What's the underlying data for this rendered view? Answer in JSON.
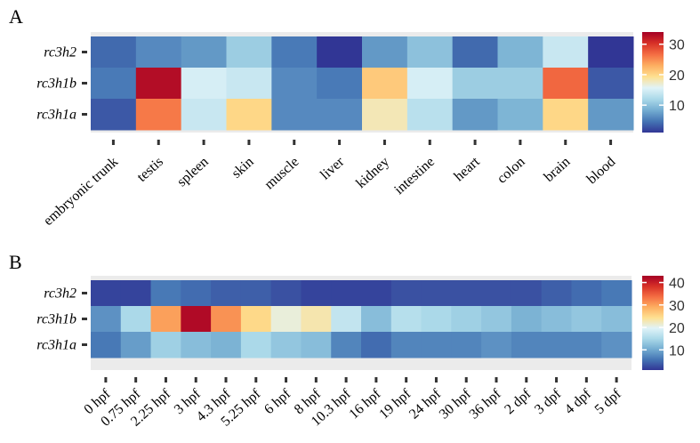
{
  "colors": {
    "scale": [
      "#313695",
      "#4575b4",
      "#74add1",
      "#abd9e9",
      "#e0f3f8",
      "#fee090",
      "#fdae61",
      "#f46d43",
      "#d73027",
      "#a50026"
    ]
  },
  "chart_data": [
    {
      "type": "heatmap",
      "panel_label": "A",
      "rows": [
        "rc3h2",
        "rc3h1b",
        "rc3h1a"
      ],
      "columns": [
        "embryonic trunk",
        "testis",
        "spleen",
        "skin",
        "muscle",
        "liver",
        "kidney",
        "intestine",
        "heart",
        "colon",
        "brain",
        "blood"
      ],
      "values": [
        [
          4,
          6,
          7,
          11,
          5,
          1,
          7,
          10,
          4,
          9,
          14,
          1
        ],
        [
          5,
          33,
          15,
          14,
          6,
          5,
          21,
          15,
          11,
          11,
          27,
          3
        ],
        [
          3,
          26,
          14,
          20,
          6,
          6,
          18,
          13,
          7,
          9,
          20,
          7
        ]
      ],
      "colorbar": {
        "min": 1,
        "max": 34,
        "ticks": [
          10,
          20,
          30
        ]
      }
    },
    {
      "type": "heatmap",
      "panel_label": "B",
      "rows": [
        "rc3h2",
        "rc3h1b",
        "rc3h1a"
      ],
      "columns": [
        "0 hpf",
        "0.75 hpf",
        "2.25 hpf",
        "3 hpf",
        "4.3 hpf",
        "5.25 hpf",
        "6 hpf",
        "8 hpf",
        "10.3 hpf",
        "16 hpf",
        "19 hpf",
        "24 hpf",
        "30 hpf",
        "36 hpf",
        "2 dpf",
        "3 dpf",
        "4 dpf",
        "5 dpf"
      ],
      "values": [
        [
          2,
          2,
          6,
          5,
          4,
          4,
          3,
          2,
          2,
          2,
          3,
          3,
          3,
          3,
          3,
          4,
          5,
          6
        ],
        [
          8,
          15,
          30,
          42,
          31,
          25,
          21,
          23,
          17,
          12,
          16,
          15,
          14,
          13,
          11,
          12,
          13,
          12
        ],
        [
          6,
          9,
          14,
          12,
          11,
          15,
          13,
          12,
          7,
          5,
          7,
          7,
          7,
          8,
          7,
          7,
          7,
          8
        ]
      ],
      "colorbar": {
        "min": 1,
        "max": 43,
        "ticks": [
          10,
          20,
          30,
          40
        ]
      }
    }
  ]
}
